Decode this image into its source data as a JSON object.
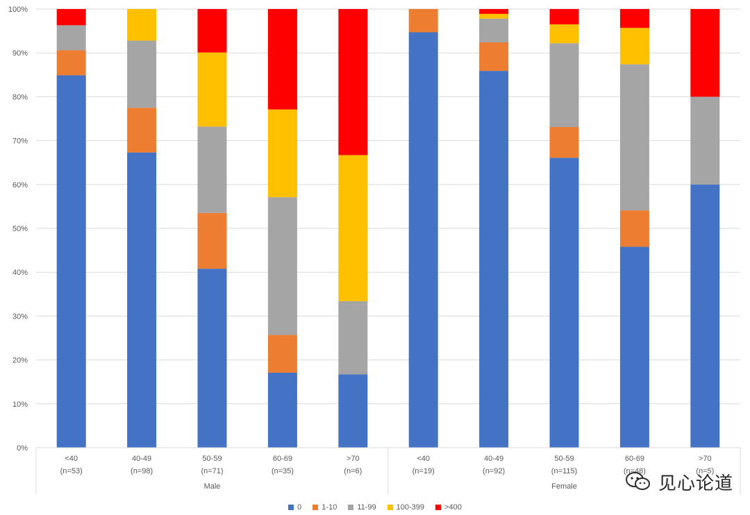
{
  "chart_data": {
    "type": "bar",
    "stacked": true,
    "percent_stacked": true,
    "groups": [
      {
        "name": "Male",
        "categories": [
          "<40",
          "40-49",
          "50-59",
          "60-69",
          ">70"
        ],
        "n_labels": [
          "(n=53)",
          "(n=98)",
          "(n=71)",
          "(n=35)",
          "(n=6)"
        ]
      },
      {
        "name": "Female",
        "categories": [
          "<40",
          "40-49",
          "50-59",
          "60-69",
          ">70"
        ],
        "n_labels": [
          "(n=19)",
          "(n=92)",
          "(n=115)",
          "(n=48)",
          "(n=5)"
        ]
      }
    ],
    "series": [
      {
        "name": "0",
        "color": "#4472c4",
        "values": [
          84.9,
          67.3,
          40.8,
          17.1,
          16.7,
          94.7,
          85.9,
          66.1,
          45.8,
          60.0
        ]
      },
      {
        "name": "1-10",
        "color": "#ed7d31",
        "values": [
          5.7,
          10.2,
          12.7,
          8.6,
          0.0,
          5.3,
          6.5,
          7.0,
          8.3,
          0.0
        ]
      },
      {
        "name": "11-99",
        "color": "#a5a5a5",
        "values": [
          5.7,
          15.3,
          19.7,
          31.4,
          16.7,
          0.0,
          5.4,
          19.1,
          33.3,
          20.0
        ]
      },
      {
        "name": "100-399",
        "color": "#ffc000",
        "values": [
          0.0,
          7.2,
          16.9,
          20.0,
          33.3,
          0.0,
          1.1,
          4.3,
          8.3,
          0.0
        ]
      },
      {
        "name": ">400",
        "color": "#ff0000",
        "values": [
          3.7,
          0.0,
          9.9,
          22.9,
          33.3,
          0.0,
          1.1,
          3.5,
          4.3,
          20.0
        ]
      }
    ],
    "y_ticks": [
      "0%",
      "10%",
      "20%",
      "30%",
      "40%",
      "50%",
      "60%",
      "70%",
      "80%",
      "90%",
      "100%"
    ],
    "ylim": [
      0,
      100
    ],
    "grid": true,
    "legend_position": "bottom"
  },
  "watermark": {
    "text": "见心论道",
    "icon": "wechat-icon"
  }
}
